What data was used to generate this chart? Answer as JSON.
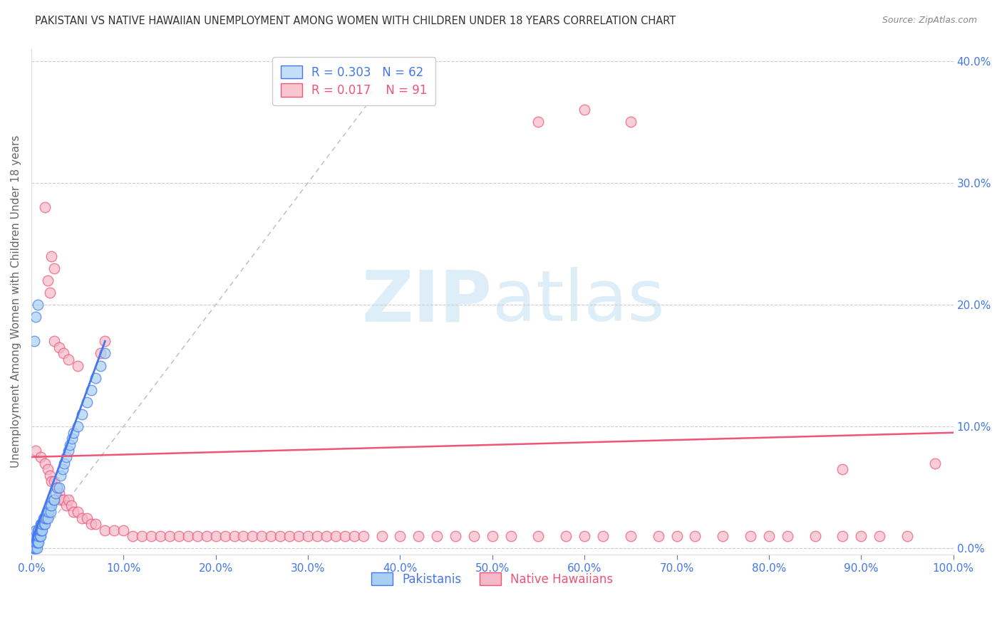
{
  "title": "PAKISTANI VS NATIVE HAWAIIAN UNEMPLOYMENT AMONG WOMEN WITH CHILDREN UNDER 18 YEARS CORRELATION CHART",
  "source": "Source: ZipAtlas.com",
  "ylabel": "Unemployment Among Women with Children Under 18 years",
  "xlim": [
    0,
    1.0
  ],
  "ylim": [
    -0.005,
    0.41
  ],
  "pakistani_R": 0.303,
  "pakistani_N": 62,
  "hawaiian_R": 0.017,
  "hawaiian_N": 91,
  "scatter_color_pak": "#a8d0f0",
  "scatter_color_haw": "#f5b8c8",
  "trend_color_pak": "#4477ee",
  "trend_color_haw": "#ee5577",
  "diag_color": "#bbbbbb",
  "legend_box_color_pak": "#c5def8",
  "legend_box_color_haw": "#f8c5d0",
  "watermark_zip": "ZIP",
  "watermark_atlas": "atlas",
  "watermark_color": "#ddeef8",
  "tick_color": "#4477ee",
  "grid_color": "#cccccc",
  "pak_x": [
    0.002,
    0.003,
    0.003,
    0.004,
    0.004,
    0.004,
    0.005,
    0.005,
    0.005,
    0.005,
    0.006,
    0.006,
    0.006,
    0.007,
    0.007,
    0.007,
    0.008,
    0.008,
    0.008,
    0.009,
    0.009,
    0.01,
    0.01,
    0.01,
    0.011,
    0.011,
    0.012,
    0.012,
    0.013,
    0.014,
    0.015,
    0.015,
    0.016,
    0.017,
    0.018,
    0.019,
    0.02,
    0.021,
    0.022,
    0.024,
    0.025,
    0.026,
    0.028,
    0.03,
    0.032,
    0.034,
    0.036,
    0.038,
    0.04,
    0.042,
    0.044,
    0.046,
    0.05,
    0.055,
    0.06,
    0.065,
    0.07,
    0.075,
    0.08,
    0.003,
    0.005,
    0.007
  ],
  "pak_y": [
    0.0,
    0.0,
    0.005,
    0.0,
    0.005,
    0.01,
    0.0,
    0.005,
    0.01,
    0.015,
    0.0,
    0.005,
    0.01,
    0.005,
    0.01,
    0.015,
    0.005,
    0.01,
    0.015,
    0.01,
    0.015,
    0.01,
    0.015,
    0.02,
    0.015,
    0.02,
    0.015,
    0.02,
    0.025,
    0.02,
    0.02,
    0.025,
    0.025,
    0.03,
    0.025,
    0.03,
    0.035,
    0.03,
    0.035,
    0.04,
    0.04,
    0.045,
    0.05,
    0.05,
    0.06,
    0.065,
    0.07,
    0.075,
    0.08,
    0.085,
    0.09,
    0.095,
    0.1,
    0.11,
    0.12,
    0.13,
    0.14,
    0.15,
    0.16,
    0.17,
    0.19,
    0.2
  ],
  "haw_x": [
    0.005,
    0.01,
    0.015,
    0.018,
    0.02,
    0.022,
    0.025,
    0.028,
    0.03,
    0.032,
    0.035,
    0.038,
    0.04,
    0.043,
    0.046,
    0.05,
    0.055,
    0.06,
    0.065,
    0.07,
    0.08,
    0.09,
    0.1,
    0.11,
    0.12,
    0.13,
    0.14,
    0.15,
    0.16,
    0.17,
    0.18,
    0.19,
    0.2,
    0.21,
    0.22,
    0.23,
    0.24,
    0.25,
    0.26,
    0.27,
    0.28,
    0.29,
    0.3,
    0.31,
    0.32,
    0.33,
    0.34,
    0.35,
    0.36,
    0.38,
    0.4,
    0.42,
    0.44,
    0.46,
    0.48,
    0.5,
    0.52,
    0.55,
    0.58,
    0.6,
    0.62,
    0.65,
    0.68,
    0.7,
    0.72,
    0.75,
    0.78,
    0.8,
    0.82,
    0.85,
    0.88,
    0.9,
    0.92,
    0.95,
    0.98,
    0.025,
    0.03,
    0.035,
    0.04,
    0.05,
    0.02,
    0.55,
    0.6,
    0.65,
    0.015,
    0.025,
    0.018,
    0.022,
    0.075,
    0.08,
    0.88
  ],
  "haw_y": [
    0.08,
    0.075,
    0.07,
    0.065,
    0.06,
    0.055,
    0.055,
    0.05,
    0.045,
    0.04,
    0.04,
    0.035,
    0.04,
    0.035,
    0.03,
    0.03,
    0.025,
    0.025,
    0.02,
    0.02,
    0.015,
    0.015,
    0.015,
    0.01,
    0.01,
    0.01,
    0.01,
    0.01,
    0.01,
    0.01,
    0.01,
    0.01,
    0.01,
    0.01,
    0.01,
    0.01,
    0.01,
    0.01,
    0.01,
    0.01,
    0.01,
    0.01,
    0.01,
    0.01,
    0.01,
    0.01,
    0.01,
    0.01,
    0.01,
    0.01,
    0.01,
    0.01,
    0.01,
    0.01,
    0.01,
    0.01,
    0.01,
    0.01,
    0.01,
    0.01,
    0.01,
    0.01,
    0.01,
    0.01,
    0.01,
    0.01,
    0.01,
    0.01,
    0.01,
    0.01,
    0.01,
    0.01,
    0.01,
    0.01,
    0.07,
    0.17,
    0.165,
    0.16,
    0.155,
    0.15,
    0.21,
    0.35,
    0.36,
    0.35,
    0.28,
    0.23,
    0.22,
    0.24,
    0.16,
    0.17,
    0.065
  ],
  "pak_trend_x": [
    0.0,
    0.08
  ],
  "pak_trend_y": [
    0.005,
    0.17
  ],
  "haw_trend_x": [
    0.0,
    1.0
  ],
  "haw_trend_y": [
    0.075,
    0.095
  ]
}
